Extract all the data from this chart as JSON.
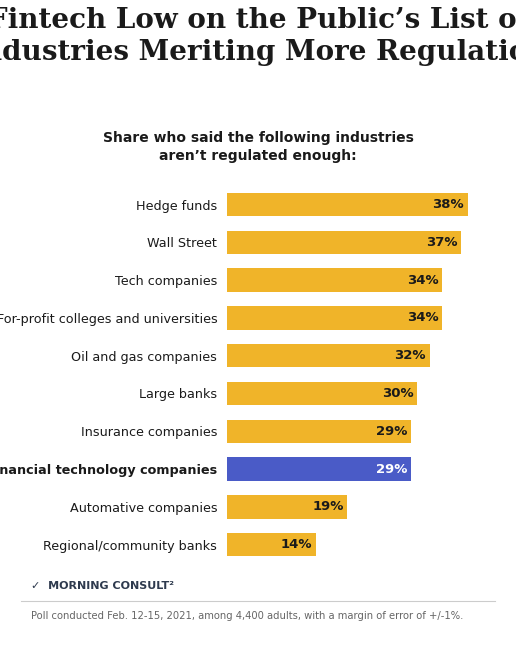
{
  "title_line1": "Fintech Low on the Public’s List of",
  "title_line2": "Industries Meriting More Regulation",
  "subtitle": "Share who said the following industries\naren’t regulated enough:",
  "categories": [
    "Hedge funds",
    "Wall Street",
    "Tech companies",
    "For-profit colleges and universities",
    "Oil and gas companies",
    "Large banks",
    "Insurance companies",
    "Financial technology companies",
    "Automative companies",
    "Regional/community banks"
  ],
  "values": [
    38,
    37,
    34,
    34,
    32,
    30,
    29,
    29,
    19,
    14
  ],
  "bar_colors": [
    "#F0B429",
    "#F0B429",
    "#F0B429",
    "#F0B429",
    "#F0B429",
    "#F0B429",
    "#F0B429",
    "#4A5BC7",
    "#F0B429",
    "#F0B429"
  ],
  "footnote": "Poll conducted Feb. 12-15, 2021, among 4,400 adults, with a margin of error of +/-1%.",
  "background_color": "#FFFFFF",
  "text_color": "#1a1a1a",
  "bar_label_color": "#1a1a1a",
  "xlim": [
    0,
    44
  ],
  "highlighted_category": "Financial technology companies"
}
